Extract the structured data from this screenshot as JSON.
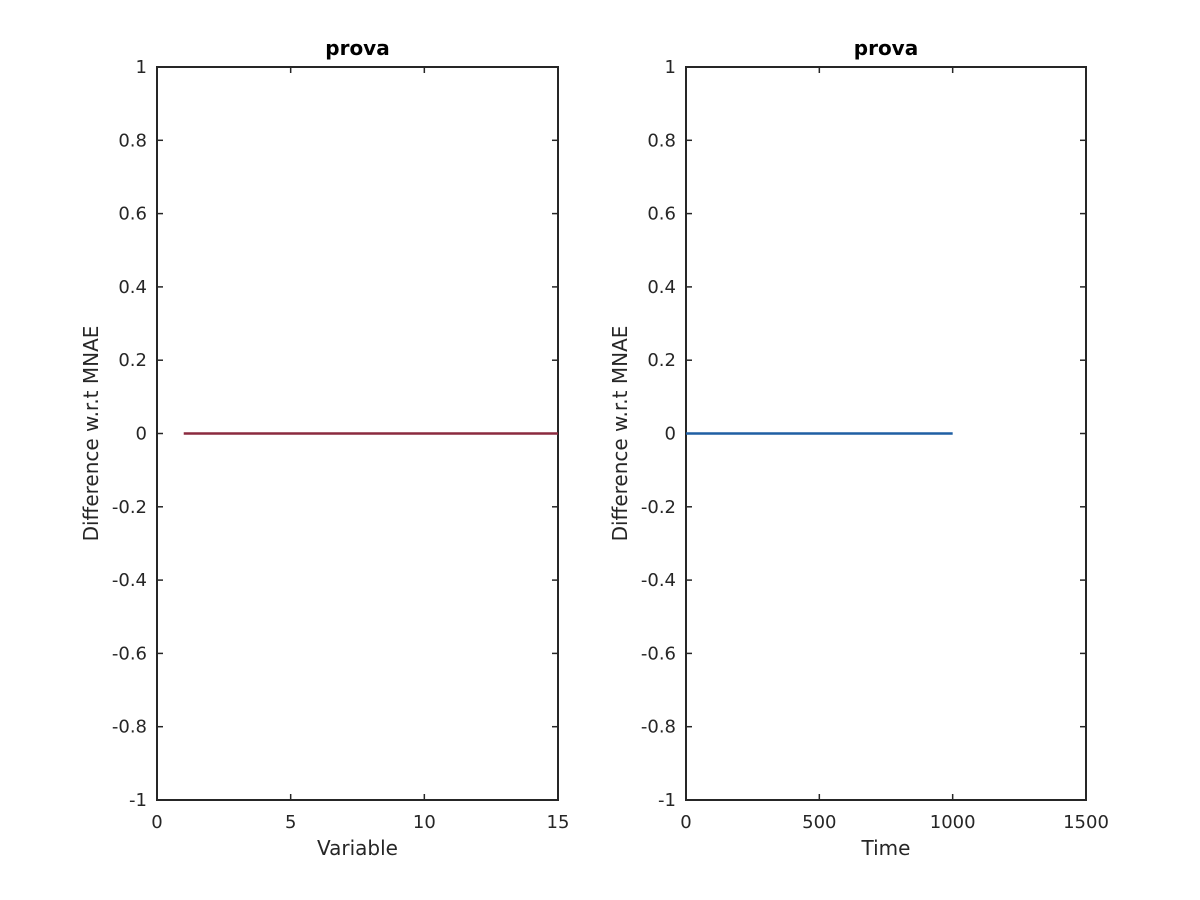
{
  "chart_data": [
    {
      "type": "line",
      "title": "prova",
      "xlabel": "Variable",
      "ylabel": "Difference w.r.t MNAE",
      "xlim": [
        0,
        15
      ],
      "ylim": [
        -1,
        1
      ],
      "xticks": [
        0,
        5,
        10,
        15
      ],
      "yticks": [
        -1,
        -0.8,
        -0.6,
        -0.4,
        -0.2,
        0,
        0.2,
        0.4,
        0.6,
        0.8,
        1
      ],
      "xtick_labels": [
        "0",
        "5",
        "10",
        "15"
      ],
      "ytick_labels": [
        "-1",
        "-0.8",
        "-0.6",
        "-0.4",
        "-0.2",
        "0",
        "0.2",
        "0.4",
        "0.6",
        "0.8",
        "1"
      ],
      "grid": false,
      "series": [
        {
          "color": "#8b2a3f",
          "x": [
            1,
            15
          ],
          "y": [
            0,
            0
          ]
        }
      ]
    },
    {
      "type": "line",
      "title": "prova",
      "xlabel": "Time",
      "ylabel": "Difference w.r.t MNAE",
      "xlim": [
        0,
        1500
      ],
      "ylim": [
        -1,
        1
      ],
      "xticks": [
        0,
        500,
        1000,
        1500
      ],
      "yticks": [
        -1,
        -0.8,
        -0.6,
        -0.4,
        -0.2,
        0,
        0.2,
        0.4,
        0.6,
        0.8,
        1
      ],
      "xtick_labels": [
        "0",
        "500",
        "1000",
        "1500"
      ],
      "ytick_labels": [
        "-1",
        "-0.8",
        "-0.6",
        "-0.4",
        "-0.2",
        "0",
        "0.2",
        "0.4",
        "0.6",
        "0.8",
        "1"
      ],
      "grid": false,
      "series": [
        {
          "color": "#1f5fa3",
          "x": [
            0,
            1000
          ],
          "y": [
            0,
            0
          ]
        }
      ]
    }
  ]
}
